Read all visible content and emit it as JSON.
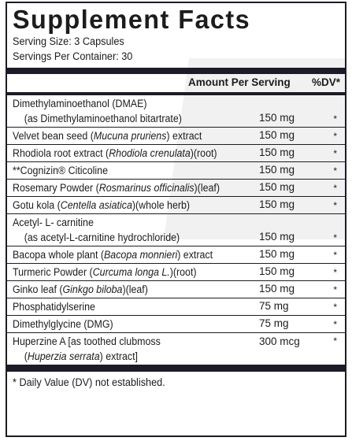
{
  "title": "Supplement Facts",
  "serving_size": "Serving Size: 3 Capsules",
  "servings_per_container": "Servings Per Container: 30",
  "header": {
    "amount": "Amount Per Serving",
    "dv": "%DV*"
  },
  "ingredients": [
    {
      "line1": [
        "Dimethylaminoethanol (DMAE)"
      ],
      "line2": [
        "(as Dimethylaminoethanol bitartrate)"
      ],
      "amount": "150 mg",
      "dv": "*"
    },
    {
      "line1": [
        "Velvet bean seed (",
        {
          "i": "Mucuna pruriens"
        },
        ") extract"
      ],
      "amount": "150 mg",
      "dv": "*"
    },
    {
      "line1": [
        "Rhodiola root extract (",
        {
          "i": "Rhodiola crenulata"
        },
        ")(root)"
      ],
      "amount": "150 mg",
      "dv": "*"
    },
    {
      "line1": [
        "**Cognizin® Citicoline"
      ],
      "amount": "150 mg",
      "dv": "*"
    },
    {
      "line1": [
        "Rosemary Powder (",
        {
          "i": "Rosmarinus officinalis"
        },
        ")(leaf)"
      ],
      "amount": "150 mg",
      "dv": "*"
    },
    {
      "line1": [
        "Gotu kola (",
        {
          "i": "Centella asiatica"
        },
        ")(whole herb)"
      ],
      "amount": "150 mg",
      "dv": "*"
    },
    {
      "line1": [
        "Acetyl- L- carnitine"
      ],
      "line2": [
        "(as acetyl-L-carnitine hydrochloride)"
      ],
      "amount": "150 mg",
      "dv": "*"
    },
    {
      "line1": [
        "Bacopa whole plant (",
        {
          "i": "Bacopa monnieri"
        },
        ") extract"
      ],
      "amount": "150 mg",
      "dv": "*"
    },
    {
      "line1": [
        "Turmeric Powder (",
        {
          "i": "Curcuma longa L."
        },
        ")(root)"
      ],
      "amount": "150 mg",
      "dv": "*"
    },
    {
      "line1": [
        "Ginko leaf (",
        {
          "i": "Ginkgo biloba"
        },
        ")(leaf)"
      ],
      "amount": "150 mg",
      "dv": "*"
    },
    {
      "line1": [
        "Phosphatidylserine"
      ],
      "amount": "75 mg",
      "dv": "*"
    },
    {
      "line1": [
        "Dimethylglycine (DMG)"
      ],
      "amount": "75 mg",
      "dv": "*"
    },
    {
      "line1": [
        "Huperzine A [as toothed clubmoss"
      ],
      "line2": [
        "(",
        {
          "i": "Huperzia serrata"
        },
        ") extract]"
      ],
      "amount": "300 mcg",
      "dv": "*",
      "amount_top": true
    }
  ],
  "footnote": "* Daily Value (DV) not established.",
  "colors": {
    "rule": "#1c1c28",
    "text": "#1c1c1c",
    "watermark": "#f1f1f1"
  }
}
